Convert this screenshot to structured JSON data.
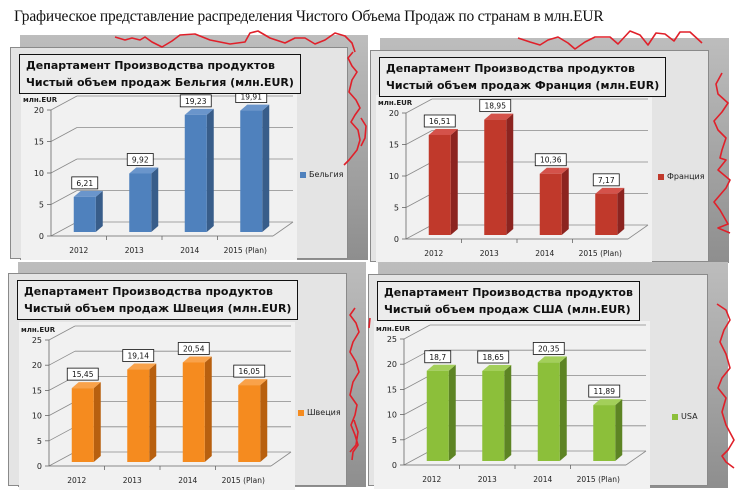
{
  "page": {
    "title": "Графическое представление распределения Чистого Объема Продаж по странам в млн.EUR"
  },
  "panels": [
    {
      "title_line1": "Департамент Производства продуктов",
      "title_line2": "Чистый  объем продаж Бельгия (млн.EUR)",
      "legend": "Бельгия"
    },
    {
      "title_line1": "Департамент Производства продуктов",
      "title_line2": "Чистый  объем продаж Франция  (млн.EUR)",
      "legend": "Франция"
    },
    {
      "title_line1": "Департамент Производства продуктов",
      "title_line2": "Чистый  объем продаж Швеция (млн.EUR)",
      "legend": "Швеция"
    },
    {
      "title_line1": "Департамент Производства продуктов",
      "title_line2": "Чистый  объем продаж США (млн.EUR)",
      "legend": "USA"
    }
  ],
  "chart_data": [
    {
      "type": "bar",
      "title": "Департамент Производства продуктов Чистый объем продаж Бельгия (млн.EUR)",
      "categories": [
        "2012",
        "2013",
        "2014",
        "2015 (Plan)"
      ],
      "series": [
        {
          "name": "Бельгия",
          "values": [
            6.21,
            9.92,
            19.23,
            19.91
          ],
          "labels": [
            "6,21",
            "9,92",
            "19,23",
            "19,91"
          ]
        }
      ],
      "ylabel": "млн.EUR",
      "xlabel": "",
      "ylim": [
        0,
        20
      ],
      "yticks": [
        0,
        5,
        10,
        15,
        20
      ],
      "grid": true,
      "legend_position": "right",
      "colors": {
        "front": "#4f81bd",
        "side": "#385d8a",
        "top": "#6a95cb"
      }
    },
    {
      "type": "bar",
      "title": "Департамент Производства продуктов Чистый объем продаж Франция (млн.EUR)",
      "categories": [
        "2012",
        "2013",
        "2014",
        "2015 (Plan)"
      ],
      "series": [
        {
          "name": "Франция",
          "values": [
            16.51,
            18.95,
            10.36,
            7.17
          ],
          "labels": [
            "16,51",
            "18,95",
            "10,36",
            "7,17"
          ]
        }
      ],
      "ylabel": "млн.EUR",
      "xlabel": "",
      "ylim": [
        0,
        20
      ],
      "yticks": [
        0,
        5,
        10,
        15,
        20
      ],
      "grid": true,
      "legend_position": "right",
      "colors": {
        "front": "#c0392b",
        "side": "#8c2420",
        "top": "#d4524a"
      }
    },
    {
      "type": "bar",
      "title": "Департамент Производства продуктов Чистый объем продаж Швеция (млн.EUR)",
      "categories": [
        "2012",
        "2013",
        "2014",
        "2015 (Plan)"
      ],
      "series": [
        {
          "name": "Швеция",
          "values": [
            15.45,
            19.14,
            20.54,
            16.05
          ],
          "labels": [
            "15,45",
            "19,14",
            "20,54",
            "16,05"
          ]
        }
      ],
      "ylabel": "млн.EUR",
      "xlabel": "",
      "ylim": [
        0,
        25
      ],
      "yticks": [
        0,
        5,
        10,
        15,
        20,
        25
      ],
      "grid": true,
      "legend_position": "right",
      "colors": {
        "front": "#f58b1f",
        "side": "#b8600f",
        "top": "#f9a24a"
      }
    },
    {
      "type": "bar",
      "title": "Департамент Производства продуктов Чистый объем продаж США (млн.EUR)",
      "categories": [
        "2012",
        "2013",
        "2014",
        "2015 (Plan)"
      ],
      "series": [
        {
          "name": "USA",
          "values": [
            18.7,
            18.65,
            20.35,
            11.89
          ],
          "labels": [
            "18,7",
            "18,65",
            "20,35",
            "11,89"
          ]
        }
      ],
      "ylabel": "млн.EUR",
      "xlabel": "",
      "ylim": [
        0,
        25
      ],
      "yticks": [
        0,
        5,
        10,
        15,
        20,
        25
      ],
      "grid": true,
      "legend_position": "right",
      "colors": {
        "front": "#8cbf3a",
        "side": "#5d8424",
        "top": "#a3cf5a"
      }
    }
  ],
  "annotations": {
    "scribble_color": "#e0202a"
  }
}
